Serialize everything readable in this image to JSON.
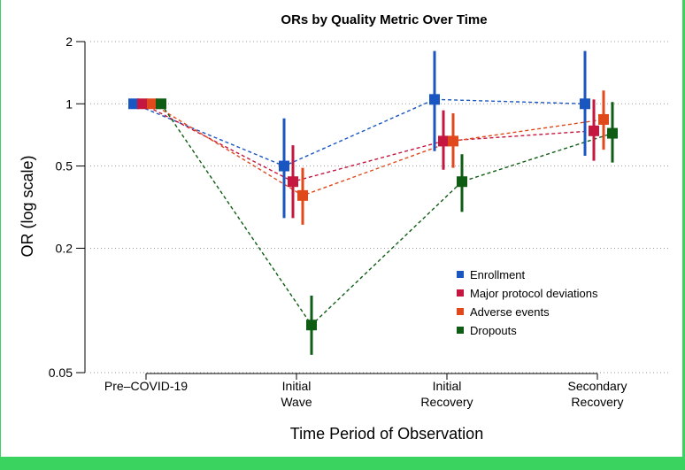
{
  "frame": {
    "accent": "#3bd35f"
  },
  "chart_data": {
    "type": "scatter",
    "title": "ORs by Quality Metric Over Time",
    "xlabel": "Time Period of Observation",
    "ylabel": "OR (log scale)",
    "yscale": "log",
    "ylim": [
      0.05,
      2
    ],
    "yticks": [
      {
        "value": 2,
        "label": "2"
      },
      {
        "value": 1,
        "label": "1"
      },
      {
        "value": 0.5,
        "label": "0.5"
      },
      {
        "value": 0.2,
        "label": "0.2"
      },
      {
        "value": 0.05,
        "label": "0.05"
      }
    ],
    "categories": [
      [
        "Pre–COVID-19"
      ],
      [
        "Initial",
        "Wave"
      ],
      [
        "Initial",
        "Recovery"
      ],
      [
        "Secondary",
        "Recovery"
      ]
    ],
    "legend_position": "lower-right",
    "grid": "horizontal dotted",
    "series": [
      {
        "name": "Enrollment",
        "color": "#1a56c2",
        "points": [
          {
            "or": 1,
            "lo": null,
            "hi": null
          },
          {
            "or": 0.5,
            "lo": 0.28,
            "hi": 0.85
          },
          {
            "or": 1.05,
            "lo": 0.59,
            "hi": 1.8
          },
          {
            "or": 1.0,
            "lo": 0.56,
            "hi": 1.8
          }
        ]
      },
      {
        "name": "Major protocol deviations",
        "color": "#c4163f",
        "points": [
          {
            "or": 1,
            "lo": null,
            "hi": null
          },
          {
            "or": 0.42,
            "lo": 0.28,
            "hi": 0.63
          },
          {
            "or": 0.66,
            "lo": 0.48,
            "hi": 0.93
          },
          {
            "or": 0.74,
            "lo": 0.53,
            "hi": 1.05
          }
        ]
      },
      {
        "name": "Adverse events",
        "color": "#e0491b",
        "points": [
          {
            "or": 1,
            "lo": null,
            "hi": null
          },
          {
            "or": 0.36,
            "lo": 0.26,
            "hi": 0.49
          },
          {
            "or": 0.66,
            "lo": 0.49,
            "hi": 0.9
          },
          {
            "or": 0.84,
            "lo": 0.6,
            "hi": 1.16
          }
        ]
      },
      {
        "name": "Dropouts",
        "color": "#0f5d14",
        "points": [
          {
            "or": 1,
            "lo": null,
            "hi": null
          },
          {
            "or": 0.085,
            "lo": 0.061,
            "hi": 0.118
          },
          {
            "or": 0.42,
            "lo": 0.3,
            "hi": 0.57
          },
          {
            "or": 0.72,
            "lo": 0.52,
            "hi": 1.02
          }
        ]
      }
    ]
  }
}
